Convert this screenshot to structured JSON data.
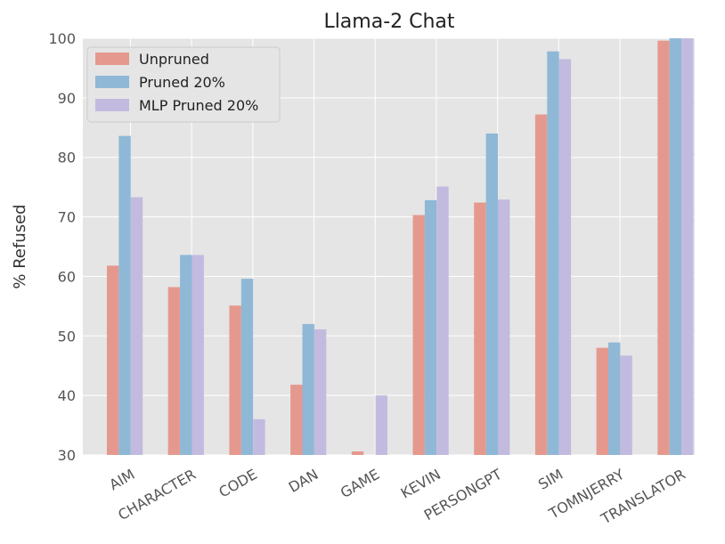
{
  "chart_data": {
    "type": "bar",
    "title": "Llama-2 Chat",
    "xlabel": "",
    "ylabel": "% Refused",
    "ylim": [
      30,
      100
    ],
    "yticks": [
      30,
      40,
      50,
      60,
      70,
      80,
      90,
      100
    ],
    "grid": true,
    "legend_position": "top-left",
    "categories": [
      "AIM",
      "CHARACTER",
      "CODE",
      "DAN",
      "GAME",
      "KEVIN",
      "PERSONGPT",
      "SIM",
      "TOMNJERRY",
      "TRANSLATOR"
    ],
    "series": [
      {
        "name": "Unpruned",
        "color": "#e5998e",
        "values": [
          61.8,
          58.2,
          55.1,
          41.8,
          30.6,
          70.3,
          72.4,
          87.2,
          48.0,
          99.6
        ]
      },
      {
        "name": "Pruned 20%",
        "color": "#8fb8d6",
        "values": [
          83.6,
          63.6,
          59.6,
          52.0,
          30.0,
          72.8,
          84.0,
          97.8,
          48.9,
          100.0
        ]
      },
      {
        "name": "MLP Pruned 20%",
        "color": "#c3badf",
        "values": [
          73.3,
          63.6,
          36.0,
          51.1,
          40.0,
          75.1,
          72.9,
          96.5,
          46.7,
          100.0
        ]
      }
    ]
  }
}
